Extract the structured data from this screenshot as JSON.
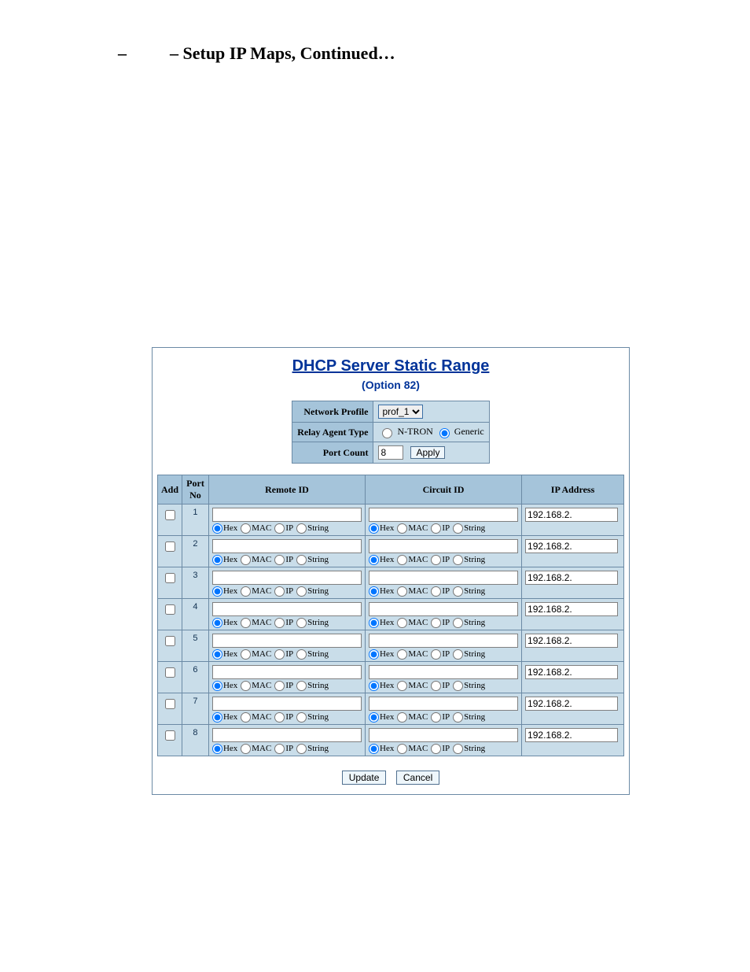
{
  "page_heading_prefix": "– ",
  "page_heading": "– Setup IP Maps, Continued…",
  "title": "DHCP Server Static Range",
  "subtitle": "(Option 82)",
  "config": {
    "network_profile_label": "Network Profile",
    "network_profile_value": "prof_1",
    "relay_agent_type_label": "Relay Agent Type",
    "relay_ntron_label": "N-TRON",
    "relay_generic_label": "Generic",
    "relay_selected": "generic",
    "port_count_label": "Port Count",
    "port_count_value": "8",
    "apply_label": "Apply"
  },
  "headers": {
    "add": "Add",
    "port_no": "Port\nNo",
    "remote_id": "Remote ID",
    "circuit_id": "Circuit ID",
    "ip_address": "IP Address"
  },
  "radio_opts": {
    "hex": "Hex",
    "mac": "MAC",
    "ip": "IP",
    "string": "String"
  },
  "rows": [
    {
      "port": "1",
      "remote": "",
      "remote_sel": "hex",
      "circuit": "",
      "circuit_sel": "hex",
      "ip": "192.168.2."
    },
    {
      "port": "2",
      "remote": "",
      "remote_sel": "hex",
      "circuit": "",
      "circuit_sel": "hex",
      "ip": "192.168.2."
    },
    {
      "port": "3",
      "remote": "",
      "remote_sel": "hex",
      "circuit": "",
      "circuit_sel": "hex",
      "ip": "192.168.2."
    },
    {
      "port": "4",
      "remote": "",
      "remote_sel": "hex",
      "circuit": "",
      "circuit_sel": "hex",
      "ip": "192.168.2."
    },
    {
      "port": "5",
      "remote": "",
      "remote_sel": "hex",
      "circuit": "",
      "circuit_sel": "hex",
      "ip": "192.168.2."
    },
    {
      "port": "6",
      "remote": "",
      "remote_sel": "hex",
      "circuit": "",
      "circuit_sel": "hex",
      "ip": "192.168.2."
    },
    {
      "port": "7",
      "remote": "",
      "remote_sel": "hex",
      "circuit": "",
      "circuit_sel": "hex",
      "ip": "192.168.2."
    },
    {
      "port": "8",
      "remote": "",
      "remote_sel": "hex",
      "circuit": "",
      "circuit_sel": "hex",
      "ip": "192.168.2."
    }
  ],
  "buttons": {
    "update": "Update",
    "cancel": "Cancel"
  },
  "colors": {
    "header_bg": "#a5c4da",
    "cell_bg": "#c9dde9",
    "border": "#6b8aa5",
    "title_color": "#003399"
  }
}
